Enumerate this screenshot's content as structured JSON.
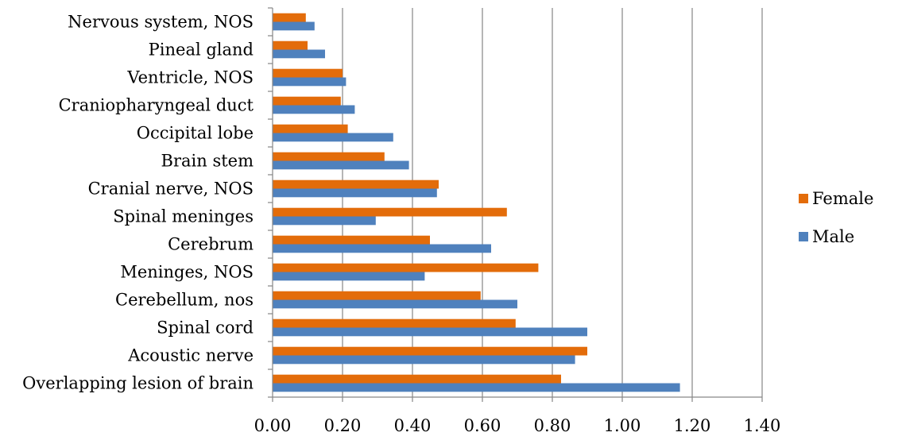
{
  "chart_data": {
    "type": "bar",
    "orientation": "horizontal",
    "categories": [
      "Overlapping lesion of brain",
      "Acoustic nerve",
      "Spinal cord",
      "Cerebellum, nos",
      "Meninges, NOS",
      "Cerebrum",
      "Spinal meninges",
      "Cranial nerve, NOS",
      "Brain stem",
      "Occipital lobe",
      "Craniopharyngeal duct",
      "Ventricle, NOS",
      "Pineal gland",
      "Nervous system, NOS"
    ],
    "series": [
      {
        "name": "Female",
        "color": "#E36C0A",
        "values": [
          0.825,
          0.9,
          0.695,
          0.595,
          0.76,
          0.45,
          0.67,
          0.475,
          0.32,
          0.215,
          0.195,
          0.2,
          0.1,
          0.095
        ]
      },
      {
        "name": "Male",
        "color": "#4F81BD",
        "values": [
          1.165,
          0.865,
          0.9,
          0.7,
          0.435,
          0.625,
          0.295,
          0.47,
          0.39,
          0.345,
          0.235,
          0.21,
          0.15,
          0.12
        ]
      }
    ],
    "xticks": [
      "0.00",
      "0.20",
      "0.40",
      "0.60",
      "0.80",
      "1.00",
      "1.20",
      "1.40"
    ],
    "xlim": [
      0,
      1.4
    ],
    "title": "",
    "xlabel": "",
    "ylabel": "",
    "grid": "vertical",
    "legend": "right"
  }
}
